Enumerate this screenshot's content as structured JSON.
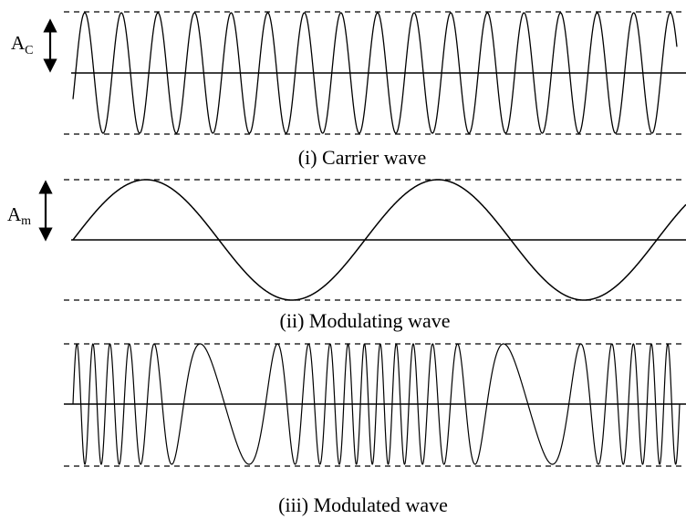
{
  "panels": [
    {
      "caption": "(i) Carrier wave",
      "amplitude_label": "A",
      "amplitude_subscript": "C",
      "waveform": "sine",
      "cycles": 16.5,
      "start_phase": "minus-half"
    },
    {
      "caption": "(ii) Modulating wave",
      "amplitude_label": "A",
      "amplitude_subscript": "m",
      "waveform": "sine",
      "cycles": 2.1,
      "start_phase": "zero"
    },
    {
      "caption": "(iii) Modulated wave",
      "amplitude_label": "",
      "amplitude_subscript": "",
      "waveform": "frequency-modulated",
      "base_cycles": 22,
      "modulation_index": 0.75
    }
  ],
  "colors": {
    "line": "#000000",
    "background": "#ffffff"
  }
}
